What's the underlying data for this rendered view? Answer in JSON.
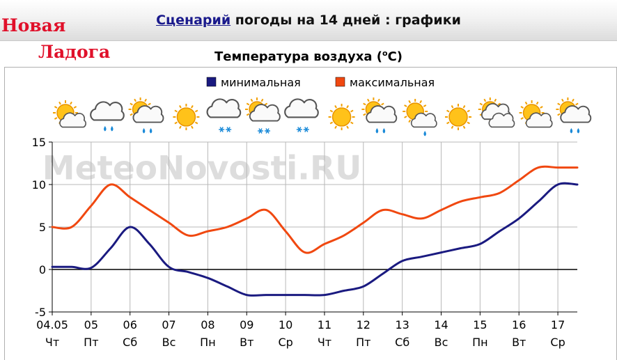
{
  "header": {
    "link_text": "Сценарий",
    "title_rest": " погоды на 14 дней : графики"
  },
  "city": {
    "line1": "Новая",
    "line2": "Ладога"
  },
  "chart_title_main": "Температура воздуха (",
  "chart_title_sup": "o",
  "chart_title_end": "C)",
  "watermark": "MeteoNovosti.RU",
  "legend": {
    "min_label": "минимальная",
    "max_label": "максимальная"
  },
  "colors": {
    "min": "#1a1a80",
    "max": "#f04810",
    "grid": "#b8b8b8",
    "zero": "#000000",
    "title_link": "#1a1a8c",
    "city": "#e0102a"
  },
  "weather_icons": [
    "sun-cloud-icon",
    "cloud-rain-icon",
    "sun-cloud-rain-icon",
    "sun-icon",
    "cloud-snow-icon",
    "sun-cloud-snow-icon",
    "cloud-snow-icon",
    "sun-icon",
    "sun-cloud-rain-icon",
    "sun-cloud-drop-icon",
    "sun-icon",
    "sun-double-cloud-icon",
    "sun-cloud-icon",
    "sun-cloud-rain-icon"
  ],
  "chart_data": {
    "type": "line",
    "x_labels": [
      "04.05",
      "05",
      "06",
      "07",
      "08",
      "09",
      "10",
      "11",
      "12",
      "13",
      "14",
      "15",
      "16",
      "17"
    ],
    "x_weekdays": [
      "Чт",
      "Пт",
      "Сб",
      "Вс",
      "Пн",
      "Вт",
      "Ср",
      "Чт",
      "Пт",
      "Сб",
      "Вс",
      "Пн",
      "Вт",
      "Ср"
    ],
    "ylim": [
      -5,
      15
    ],
    "yticks": [
      15,
      10,
      5,
      0,
      -5
    ],
    "xlim": [
      0,
      13.5
    ],
    "series": [
      {
        "name": "минимальная",
        "x": [
          0,
          0.5,
          1,
          1.5,
          2,
          2.5,
          3,
          3.5,
          4,
          4.5,
          5,
          5.5,
          6,
          6.5,
          7,
          7.5,
          8,
          8.5,
          9,
          9.5,
          10,
          10.5,
          11,
          11.5,
          12,
          12.5,
          13,
          13.5
        ],
        "values": [
          0.3,
          0.3,
          0.2,
          2.5,
          5,
          3,
          0.3,
          -0.3,
          -1,
          -2,
          -3,
          -3,
          -3,
          -3,
          -3,
          -2.5,
          -2,
          -0.5,
          1,
          1.5,
          2,
          2.5,
          3,
          4.5,
          6,
          8,
          10,
          10
        ]
      },
      {
        "name": "максимальная",
        "x": [
          0,
          0.5,
          1,
          1.5,
          2,
          2.5,
          3,
          3.5,
          4,
          4.5,
          5,
          5.5,
          6,
          6.5,
          7,
          7.5,
          8,
          8.5,
          9,
          9.5,
          10,
          10.5,
          11,
          11.5,
          12,
          12.5,
          13,
          13.5
        ],
        "values": [
          5,
          5,
          7.5,
          10,
          8.5,
          7,
          5.5,
          4,
          4.5,
          5,
          6,
          7,
          4.5,
          2,
          3,
          4,
          5.5,
          7,
          6.5,
          6,
          7,
          8,
          8.5,
          9,
          10.5,
          12,
          12,
          12
        ]
      }
    ]
  }
}
